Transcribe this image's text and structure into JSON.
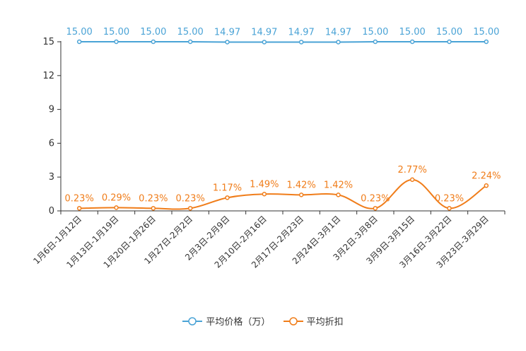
{
  "chart_data": {
    "type": "line",
    "title": "",
    "xlabel": "",
    "ylabel": "",
    "ylim": [
      0,
      15
    ],
    "yticks": [
      0,
      3,
      6,
      9,
      12,
      15
    ],
    "grid": false,
    "legend_position": "bottom",
    "categories": [
      "1月6日-1月12日",
      "1月13日-1月19日",
      "1月20日-1月26日",
      "1月27日-2月2日",
      "2月3日-2月9日",
      "2月10日-2月16日",
      "2月17日-2月23日",
      "2月24日-3月1日",
      "3月2日-3月8日",
      "3月9日-3月15日",
      "3月16日-3月22日",
      "3月23日-3月29日"
    ],
    "series": [
      {
        "name": "平均价格（万）",
        "color": "#4aa3d6",
        "smooth": false,
        "values": [
          15.0,
          15.0,
          15.0,
          15.0,
          14.97,
          14.97,
          14.97,
          14.97,
          15.0,
          15.0,
          15.0,
          15.0
        ],
        "labels": [
          "15.00",
          "15.00",
          "15.00",
          "15.00",
          "14.97",
          "14.97",
          "14.97",
          "14.97",
          "15.00",
          "15.00",
          "15.00",
          "15.00"
        ]
      },
      {
        "name": "平均折扣",
        "color": "#f07d1a",
        "smooth": true,
        "values": [
          0.23,
          0.29,
          0.23,
          0.23,
          1.17,
          1.49,
          1.42,
          1.42,
          0.23,
          2.77,
          0.23,
          2.24
        ],
        "labels": [
          "0.23%",
          "0.29%",
          "0.23%",
          "0.23%",
          "1.17%",
          "1.49%",
          "1.42%",
          "1.42%",
          "0.23%",
          "2.77%",
          "0.23%",
          "2.24%"
        ]
      }
    ]
  }
}
